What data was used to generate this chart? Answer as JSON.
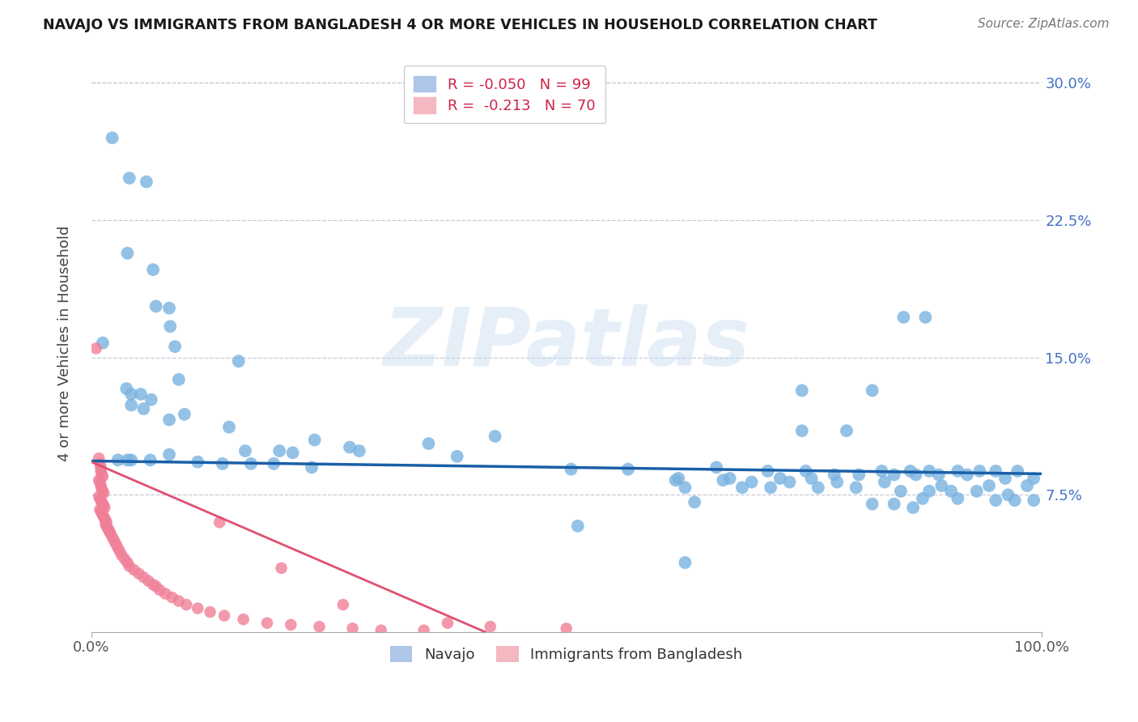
{
  "title": "NAVAJO VS IMMIGRANTS FROM BANGLADESH 4 OR MORE VEHICLES IN HOUSEHOLD CORRELATION CHART",
  "source": "Source: ZipAtlas.com",
  "ylabel": "4 or more Vehicles in Household",
  "xlim": [
    0.0,
    1.0
  ],
  "ylim": [
    0.0,
    0.315
  ],
  "ytick_vals": [
    0.075,
    0.15,
    0.225,
    0.3
  ],
  "ytick_labels": [
    "7.5%",
    "15.0%",
    "22.5%",
    "30.0%"
  ],
  "navajo_color": "#7ab3e0",
  "bangladesh_color": "#f08098",
  "navajo_line_color": "#1a5fa8",
  "bangladesh_line_color": "#e05070",
  "background_color": "#ffffff",
  "watermark": "ZIPatlas",
  "navajo_scatter": [
    [
      0.022,
      0.27
    ],
    [
      0.04,
      0.248
    ],
    [
      0.058,
      0.246
    ],
    [
      0.038,
      0.207
    ],
    [
      0.065,
      0.198
    ],
    [
      0.068,
      0.178
    ],
    [
      0.082,
      0.177
    ],
    [
      0.083,
      0.167
    ],
    [
      0.012,
      0.158
    ],
    [
      0.088,
      0.156
    ],
    [
      0.155,
      0.148
    ],
    [
      0.092,
      0.138
    ],
    [
      0.037,
      0.133
    ],
    [
      0.042,
      0.13
    ],
    [
      0.052,
      0.13
    ],
    [
      0.063,
      0.127
    ],
    [
      0.042,
      0.124
    ],
    [
      0.055,
      0.122
    ],
    [
      0.098,
      0.119
    ],
    [
      0.082,
      0.116
    ],
    [
      0.145,
      0.112
    ],
    [
      0.425,
      0.107
    ],
    [
      0.235,
      0.105
    ],
    [
      0.355,
      0.103
    ],
    [
      0.272,
      0.101
    ],
    [
      0.282,
      0.099
    ],
    [
      0.162,
      0.099
    ],
    [
      0.198,
      0.099
    ],
    [
      0.212,
      0.098
    ],
    [
      0.082,
      0.097
    ],
    [
      0.385,
      0.096
    ],
    [
      0.028,
      0.094
    ],
    [
      0.038,
      0.094
    ],
    [
      0.042,
      0.094
    ],
    [
      0.062,
      0.094
    ],
    [
      0.112,
      0.093
    ],
    [
      0.138,
      0.092
    ],
    [
      0.168,
      0.092
    ],
    [
      0.192,
      0.092
    ],
    [
      0.232,
      0.09
    ],
    [
      0.505,
      0.089
    ],
    [
      0.565,
      0.089
    ],
    [
      0.748,
      0.132
    ],
    [
      0.822,
      0.132
    ],
    [
      0.855,
      0.172
    ],
    [
      0.878,
      0.172
    ],
    [
      0.748,
      0.11
    ],
    [
      0.795,
      0.11
    ],
    [
      0.658,
      0.09
    ],
    [
      0.712,
      0.088
    ],
    [
      0.752,
      0.088
    ],
    [
      0.832,
      0.088
    ],
    [
      0.862,
      0.088
    ],
    [
      0.882,
      0.088
    ],
    [
      0.912,
      0.088
    ],
    [
      0.935,
      0.088
    ],
    [
      0.952,
      0.088
    ],
    [
      0.975,
      0.088
    ],
    [
      0.782,
      0.086
    ],
    [
      0.808,
      0.086
    ],
    [
      0.845,
      0.086
    ],
    [
      0.868,
      0.086
    ],
    [
      0.892,
      0.086
    ],
    [
      0.922,
      0.086
    ],
    [
      0.618,
      0.084
    ],
    [
      0.672,
      0.084
    ],
    [
      0.725,
      0.084
    ],
    [
      0.758,
      0.084
    ],
    [
      0.962,
      0.084
    ],
    [
      0.992,
      0.084
    ],
    [
      0.615,
      0.083
    ],
    [
      0.665,
      0.083
    ],
    [
      0.695,
      0.082
    ],
    [
      0.735,
      0.082
    ],
    [
      0.785,
      0.082
    ],
    [
      0.835,
      0.082
    ],
    [
      0.895,
      0.08
    ],
    [
      0.945,
      0.08
    ],
    [
      0.985,
      0.08
    ],
    [
      0.625,
      0.079
    ],
    [
      0.685,
      0.079
    ],
    [
      0.715,
      0.079
    ],
    [
      0.765,
      0.079
    ],
    [
      0.805,
      0.079
    ],
    [
      0.852,
      0.077
    ],
    [
      0.882,
      0.077
    ],
    [
      0.905,
      0.077
    ],
    [
      0.932,
      0.077
    ],
    [
      0.965,
      0.075
    ],
    [
      0.875,
      0.073
    ],
    [
      0.912,
      0.073
    ],
    [
      0.952,
      0.072
    ],
    [
      0.972,
      0.072
    ],
    [
      0.992,
      0.072
    ],
    [
      0.635,
      0.071
    ],
    [
      0.822,
      0.07
    ],
    [
      0.845,
      0.07
    ],
    [
      0.865,
      0.068
    ],
    [
      0.512,
      0.058
    ],
    [
      0.625,
      0.038
    ]
  ],
  "bangladesh_scatter": [
    [
      0.005,
      0.155
    ],
    [
      0.008,
      0.095
    ],
    [
      0.009,
      0.092
    ],
    [
      0.01,
      0.09
    ],
    [
      0.01,
      0.088
    ],
    [
      0.011,
      0.086
    ],
    [
      0.012,
      0.085
    ],
    [
      0.008,
      0.083
    ],
    [
      0.009,
      0.082
    ],
    [
      0.01,
      0.08
    ],
    [
      0.011,
      0.078
    ],
    [
      0.012,
      0.077
    ],
    [
      0.013,
      0.076
    ],
    [
      0.008,
      0.074
    ],
    [
      0.009,
      0.073
    ],
    [
      0.01,
      0.072
    ],
    [
      0.011,
      0.071
    ],
    [
      0.012,
      0.07
    ],
    [
      0.013,
      0.069
    ],
    [
      0.014,
      0.068
    ],
    [
      0.009,
      0.067
    ],
    [
      0.01,
      0.066
    ],
    [
      0.011,
      0.065
    ],
    [
      0.012,
      0.064
    ],
    [
      0.013,
      0.063
    ],
    [
      0.014,
      0.062
    ],
    [
      0.015,
      0.061
    ],
    [
      0.016,
      0.06
    ],
    [
      0.015,
      0.059
    ],
    [
      0.016,
      0.058
    ],
    [
      0.017,
      0.057
    ],
    [
      0.018,
      0.056
    ],
    [
      0.019,
      0.055
    ],
    [
      0.02,
      0.054
    ],
    [
      0.022,
      0.052
    ],
    [
      0.024,
      0.05
    ],
    [
      0.026,
      0.048
    ],
    [
      0.028,
      0.046
    ],
    [
      0.03,
      0.044
    ],
    [
      0.032,
      0.042
    ],
    [
      0.035,
      0.04
    ],
    [
      0.038,
      0.038
    ],
    [
      0.04,
      0.036
    ],
    [
      0.045,
      0.034
    ],
    [
      0.05,
      0.032
    ],
    [
      0.055,
      0.03
    ],
    [
      0.06,
      0.028
    ],
    [
      0.065,
      0.026
    ],
    [
      0.068,
      0.025
    ],
    [
      0.072,
      0.023
    ],
    [
      0.078,
      0.021
    ],
    [
      0.085,
      0.019
    ],
    [
      0.092,
      0.017
    ],
    [
      0.1,
      0.015
    ],
    [
      0.112,
      0.013
    ],
    [
      0.125,
      0.011
    ],
    [
      0.14,
      0.009
    ],
    [
      0.16,
      0.007
    ],
    [
      0.185,
      0.005
    ],
    [
      0.21,
      0.004
    ],
    [
      0.24,
      0.003
    ],
    [
      0.275,
      0.002
    ],
    [
      0.305,
      0.001
    ],
    [
      0.35,
      0.001
    ],
    [
      0.135,
      0.06
    ],
    [
      0.2,
      0.035
    ],
    [
      0.265,
      0.015
    ],
    [
      0.375,
      0.005
    ],
    [
      0.42,
      0.003
    ],
    [
      0.5,
      0.002
    ]
  ],
  "navajo_trend": {
    "x": [
      0.0,
      1.0
    ],
    "y": [
      0.0935,
      0.0865
    ]
  },
  "bangladesh_trend": {
    "x": [
      0.0,
      0.415
    ],
    "y": [
      0.093,
      0.0
    ]
  }
}
